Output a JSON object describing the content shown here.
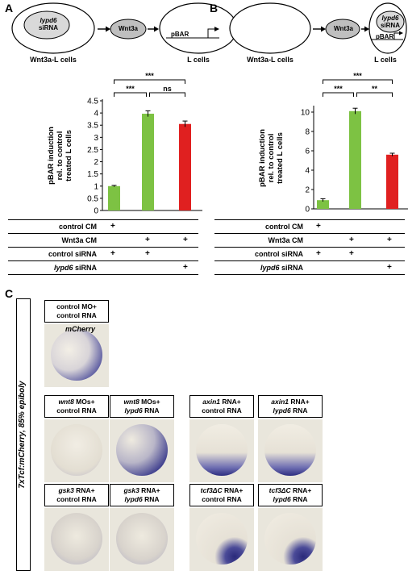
{
  "panels": {
    "A": {
      "letter": "A",
      "schema": {
        "producer_label": "Wnt3a-L cells",
        "producer_inner_line1": "lypd6",
        "producer_inner_line2": "siRNA",
        "ligand": "Wnt3a",
        "reporter_label": "L cells",
        "reporter_text": "pBAR"
      },
      "significance": {
        "top": "***",
        "left": "***",
        "right": "ns"
      },
      "table": {
        "rows": [
          "control CM",
          "Wnt3a CM",
          "control siRNA",
          "lypd6 siRNA"
        ],
        "marks": [
          [
            "+",
            "",
            ""
          ],
          [
            "",
            "+",
            "+"
          ],
          [
            "+",
            "+",
            ""
          ],
          [
            "",
            "",
            "+"
          ]
        ]
      }
    },
    "B": {
      "letter": "B",
      "schema": {
        "producer_label": "Wnt3a-L cells",
        "ligand": "Wnt3a",
        "reporter_label": "L cells",
        "reporter_inner_line1": "lypd6",
        "reporter_inner_line2": "siRNA",
        "reporter_text": "pBAR"
      },
      "significance": {
        "top": "***",
        "left": "***",
        "right": "**"
      },
      "table": {
        "rows": [
          "control CM",
          "Wnt3a CM",
          "control siRNA",
          "lypd6 siRNA"
        ],
        "marks": [
          [
            "+",
            "",
            ""
          ],
          [
            "",
            "+",
            "+"
          ],
          [
            "+",
            "+",
            ""
          ],
          [
            "",
            "",
            "+"
          ]
        ]
      }
    },
    "C": {
      "letter": "C",
      "side_label": "7xTcf:mCherry, 85% epiboly",
      "probe_label": "mCherry",
      "conditions": [
        {
          "l1a": "control MO+",
          "l1b": "",
          "l2": "control RNA",
          "l2i": ""
        },
        {
          "l1a": "wnt8",
          "l1b": " MOs+",
          "l2": "control RNA",
          "l2i": ""
        },
        {
          "l1a": "wnt8",
          "l1b": " MOs+",
          "l2": " RNA",
          "l2i": "lypd6"
        },
        {
          "l1a": "axin1",
          "l1b": " RNA+",
          "l2": "control RNA",
          "l2i": ""
        },
        {
          "l1a": "axin1",
          "l1b": " RNA+",
          "l2": " RNA",
          "l2i": "lypd6"
        },
        {
          "l1a": "gsk3",
          "l1b": " RNA+",
          "l2": "control RNA",
          "l2i": ""
        },
        {
          "l1a": "gsk3",
          "l1b": " RNA+",
          "l2": " RNA",
          "l2i": "lypd6"
        },
        {
          "l1a": "tcf3ΔC",
          "l1b": " RNA+",
          "l2": "control RNA",
          "l2i": ""
        },
        {
          "l1a": "tcf3ΔC",
          "l1b": " RNA+",
          "l2": " RNA",
          "l2i": "lypd6"
        }
      ]
    }
  },
  "chart_data": [
    {
      "type": "bar",
      "ylabel": "pBAR induction rel. to control treated L cells",
      "ylim": [
        0,
        4.5
      ],
      "yticks": [
        0,
        0.5,
        1,
        1.5,
        2,
        2.5,
        3,
        3.5,
        4,
        4.5
      ],
      "values": [
        1.0,
        3.97,
        3.55
      ],
      "errors": [
        0.03,
        0.12,
        0.12
      ],
      "colors": [
        "#7dc243",
        "#7dc243",
        "#e02020"
      ]
    },
    {
      "type": "bar",
      "ylabel": "pBAR induction rel. to control treated L cells",
      "ylim": [
        0,
        10.5
      ],
      "yticks": [
        0,
        2,
        4,
        6,
        8,
        10
      ],
      "values": [
        0.9,
        10.1,
        5.6
      ],
      "errors": [
        0.15,
        0.3,
        0.15
      ],
      "colors": [
        "#7dc243",
        "#7dc243",
        "#e02020"
      ]
    }
  ]
}
